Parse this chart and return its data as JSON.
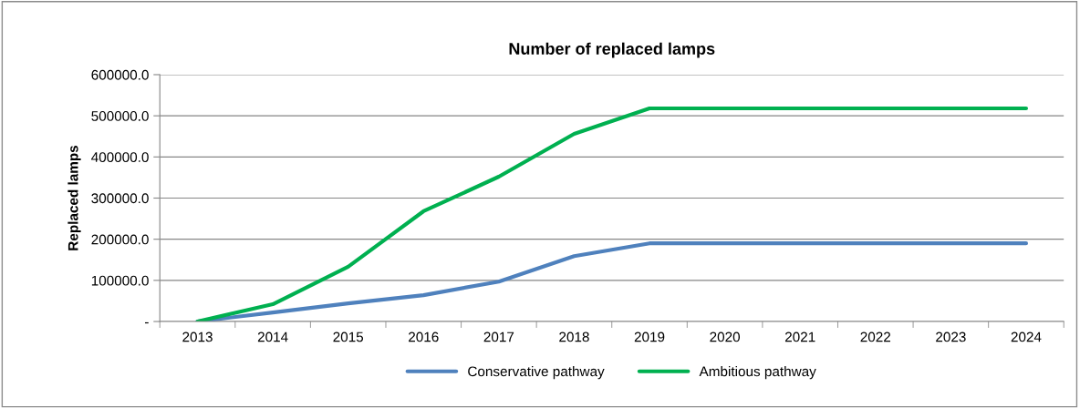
{
  "chart_data": {
    "type": "line",
    "title": "Number of replaced lamps",
    "ylabel": "Replaced lamps",
    "categories": [
      "2013",
      "2014",
      "2015",
      "2016",
      "2017",
      "2018",
      "2019",
      "2020",
      "2021",
      "2022",
      "2023",
      "2024"
    ],
    "series": [
      {
        "name": "Conservative pathway",
        "color": "#4f81bd",
        "values": [
          0,
          22000,
          44000,
          64000,
          97000,
          159000,
          190000,
          190000,
          190000,
          190000,
          190000,
          190000
        ]
      },
      {
        "name": "Ambitious pathway",
        "color": "#00b050",
        "values": [
          0,
          42000,
          133000,
          268000,
          352000,
          456000,
          518000,
          518000,
          518000,
          518000,
          518000,
          518000
        ]
      }
    ],
    "ylim": [
      0,
      600000
    ],
    "yticks": [
      {
        "value": 0,
        "label": "-"
      },
      {
        "value": 100000,
        "label": "100000.0"
      },
      {
        "value": 200000,
        "label": "200000.0"
      },
      {
        "value": 300000,
        "label": "300000.0"
      },
      {
        "value": 400000,
        "label": "400000.0"
      },
      {
        "value": 500000,
        "label": "500000.0"
      },
      {
        "value": 600000,
        "label": "600000.0"
      }
    ],
    "grid": "y",
    "legend": "bottom",
    "marker": "none",
    "line_style": "solid"
  }
}
